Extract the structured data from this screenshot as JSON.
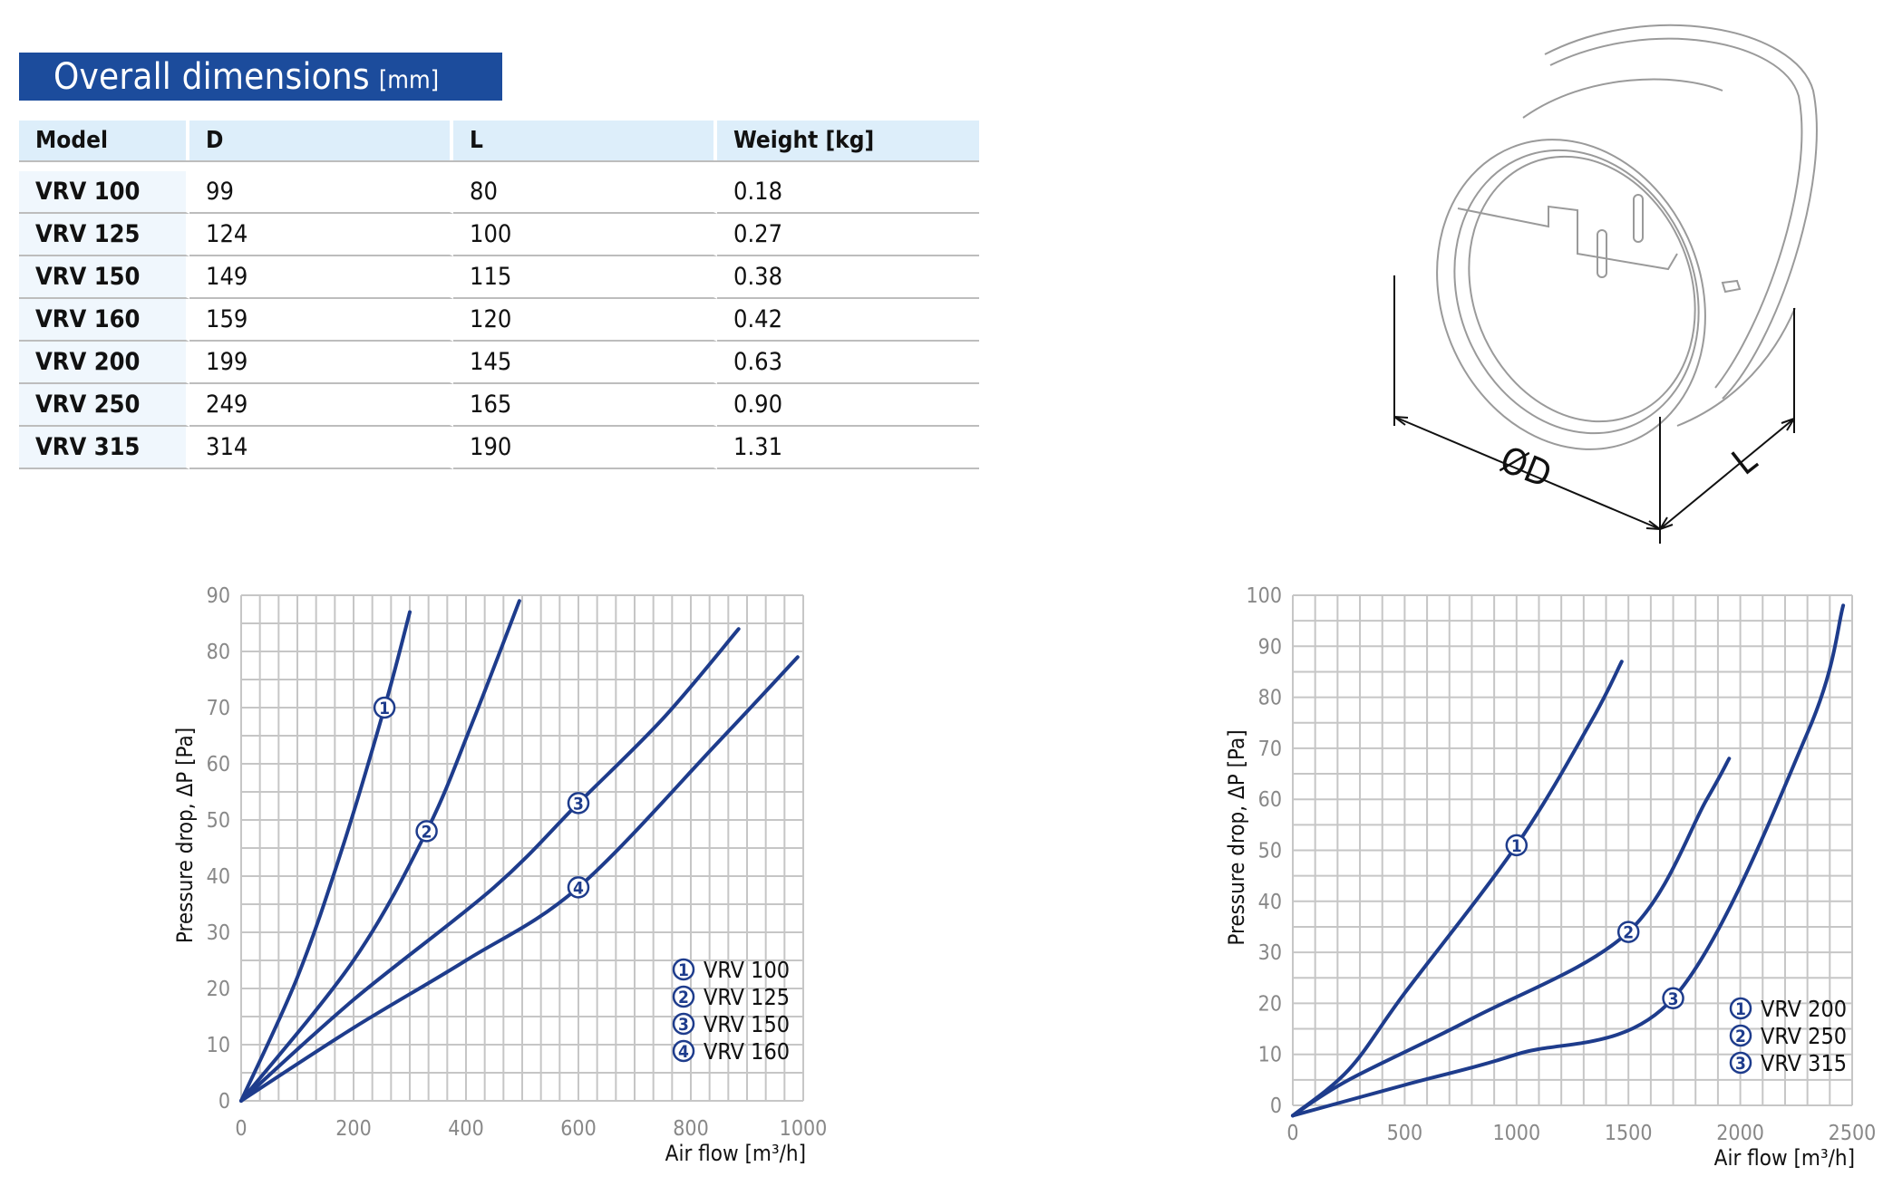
{
  "title": {
    "main": "Overall dimensions",
    "unit": "[mm]"
  },
  "table": {
    "headers": [
      "Model",
      "D",
      "L",
      "Weight [kg]"
    ],
    "rows": [
      [
        "VRV 100",
        "99",
        "80",
        "0.18"
      ],
      [
        "VRV 125",
        "124",
        "100",
        "0.27"
      ],
      [
        "VRV 150",
        "149",
        "115",
        "0.38"
      ],
      [
        "VRV 160",
        "159",
        "120",
        "0.42"
      ],
      [
        "VRV 200",
        "199",
        "145",
        "0.63"
      ],
      [
        "VRV 250",
        "249",
        "165",
        "0.90"
      ],
      [
        "VRV 315",
        "314",
        "190",
        "1.31"
      ]
    ]
  },
  "drawing": {
    "label_d": "ØD",
    "label_l": "L"
  },
  "chart_data": [
    {
      "type": "line",
      "xlabel": "Air flow [m³/h]",
      "ylabel": "Pressure drop, ΔP [Pa]",
      "xlim": [
        0,
        1000
      ],
      "ylim": [
        0,
        90
      ],
      "xticks": [
        0,
        200,
        400,
        600,
        800,
        1000
      ],
      "yticks": [
        0,
        10,
        20,
        30,
        40,
        50,
        60,
        70,
        80,
        90
      ],
      "grid": true,
      "legend_position": "bottom-right",
      "series": [
        {
          "name": "VRV 100",
          "marker": "1",
          "marker_index": 4,
          "x": [
            0,
            100,
            180,
            255,
            300
          ],
          "y": [
            0,
            22,
            45,
            70,
            87
          ]
        },
        {
          "name": "VRV 125",
          "marker": "2",
          "marker_index": 3,
          "x": [
            0,
            200,
            330,
            410,
            495
          ],
          "y": [
            0,
            25,
            48,
            67,
            89
          ]
        },
        {
          "name": "VRV 150",
          "marker": "3",
          "marker_index": 4,
          "x": [
            0,
            200,
            450,
            600,
            750,
            885
          ],
          "y": [
            0,
            18,
            38,
            53,
            68,
            84
          ]
        },
        {
          "name": "VRV 160",
          "marker": "4",
          "marker_index": 4,
          "x": [
            0,
            200,
            400,
            600,
            850,
            990
          ],
          "y": [
            0,
            13,
            25,
            38,
            64,
            79
          ]
        }
      ]
    },
    {
      "type": "line",
      "xlabel": "Air flow [m³/h]",
      "ylabel": "Pressure drop, ΔP [Pa]",
      "xlim": [
        0,
        2500
      ],
      "ylim": [
        0,
        100
      ],
      "xticks": [
        0,
        500,
        1000,
        1500,
        2000,
        2500
      ],
      "yticks": [
        0,
        10,
        20,
        30,
        40,
        50,
        60,
        70,
        80,
        90,
        100
      ],
      "grid": true,
      "legend_position": "bottom-right",
      "series": [
        {
          "name": "VRV 200",
          "marker": "1",
          "marker_index": 4,
          "x": [
            0,
            250,
            500,
            1000,
            1330,
            1470
          ],
          "y": [
            -2,
            7,
            22,
            51,
            75,
            87
          ]
        },
        {
          "name": "VRV 250",
          "marker": "2",
          "marker_index": 4,
          "x": [
            0,
            250,
            800,
            1500,
            1850,
            1950
          ],
          "y": [
            -2,
            5,
            17,
            34,
            60,
            68
          ]
        },
        {
          "name": "VRV 315",
          "marker": "3",
          "marker_index": 4,
          "x": [
            0,
            500,
            1000,
            1700,
            2300,
            2460
          ],
          "y": [
            -2,
            4,
            10,
            21,
            73,
            98
          ]
        }
      ]
    }
  ]
}
